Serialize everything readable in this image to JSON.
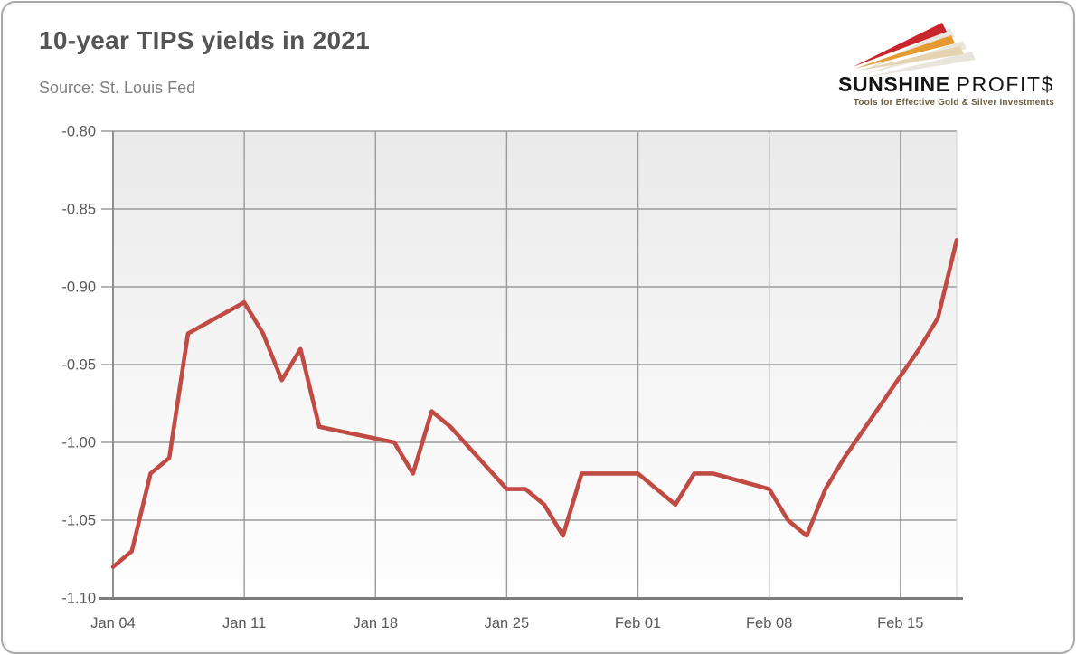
{
  "header": {
    "title": "10-year TIPS yields in 2021",
    "source": "Source: St. Louis Fed"
  },
  "logo": {
    "brand_primary": "SUNSHINE",
    "brand_secondary": "PROFIT$",
    "tagline": "Tools for Effective Gold & Silver Investments",
    "colors": {
      "ray_red": "#c9252c",
      "ray_gold": "#e59a2f",
      "ray_beige": "#e4d4b0",
      "ray_shadow": "#d9d0bf"
    }
  },
  "chart_data": {
    "type": "line",
    "title": "10-year TIPS yields in 2021",
    "xlabel": "",
    "ylabel": "",
    "ylim": [
      -1.1,
      -0.8
    ],
    "yticks": [
      -0.8,
      -0.85,
      -0.9,
      -0.95,
      -1.0,
      -1.05,
      -1.1
    ],
    "ytick_labels": [
      "-0.80",
      "-0.85",
      "-0.90",
      "-0.95",
      "-1.00",
      "-1.05",
      "-1.10"
    ],
    "xticks": [
      {
        "label": "Jan 04",
        "day": 0
      },
      {
        "label": "Jan 11",
        "day": 7
      },
      {
        "label": "Jan 18",
        "day": 14
      },
      {
        "label": "Jan 25",
        "day": 21
      },
      {
        "label": "Feb 01",
        "day": 28
      },
      {
        "label": "Feb 08",
        "day": 35
      },
      {
        "label": "Feb 15",
        "day": 42
      }
    ],
    "x_total_days": 45,
    "grid": true,
    "legend": "none",
    "grid_color": "#9b9b9b",
    "axis_color": "#7c7c7c",
    "line_color": "#c04b44",
    "plot_bg_top": "#eaeaea",
    "plot_bg_bottom": "#fefefe",
    "series": [
      {
        "name": "10-year TIPS yield (%)",
        "points": [
          {
            "date": "Jan 04",
            "day": 0,
            "value": -1.08
          },
          {
            "date": "Jan 05",
            "day": 1,
            "value": -1.07
          },
          {
            "date": "Jan 06",
            "day": 2,
            "value": -1.02
          },
          {
            "date": "Jan 07",
            "day": 3,
            "value": -1.01
          },
          {
            "date": "Jan 08",
            "day": 4,
            "value": -0.93
          },
          {
            "date": "Jan 11",
            "day": 7,
            "value": -0.91
          },
          {
            "date": "Jan 12",
            "day": 8,
            "value": -0.93
          },
          {
            "date": "Jan 13",
            "day": 9,
            "value": -0.96
          },
          {
            "date": "Jan 14",
            "day": 10,
            "value": -0.94
          },
          {
            "date": "Jan 15",
            "day": 11,
            "value": -0.99
          },
          {
            "date": "Jan 19",
            "day": 15,
            "value": -1.0
          },
          {
            "date": "Jan 20",
            "day": 16,
            "value": -1.02
          },
          {
            "date": "Jan 21",
            "day": 17,
            "value": -0.98
          },
          {
            "date": "Jan 22",
            "day": 18,
            "value": -0.99
          },
          {
            "date": "Jan 25",
            "day": 21,
            "value": -1.03
          },
          {
            "date": "Jan 26",
            "day": 22,
            "value": -1.03
          },
          {
            "date": "Jan 27",
            "day": 23,
            "value": -1.04
          },
          {
            "date": "Jan 28",
            "day": 24,
            "value": -1.06
          },
          {
            "date": "Jan 29",
            "day": 25,
            "value": -1.02
          },
          {
            "date": "Feb 01",
            "day": 28,
            "value": -1.02
          },
          {
            "date": "Feb 02",
            "day": 29,
            "value": -1.03
          },
          {
            "date": "Feb 03",
            "day": 30,
            "value": -1.04
          },
          {
            "date": "Feb 04",
            "day": 31,
            "value": -1.02
          },
          {
            "date": "Feb 05",
            "day": 32,
            "value": -1.02
          },
          {
            "date": "Feb 08",
            "day": 35,
            "value": -1.03
          },
          {
            "date": "Feb 09",
            "day": 36,
            "value": -1.05
          },
          {
            "date": "Feb 10",
            "day": 37,
            "value": -1.06
          },
          {
            "date": "Feb 11",
            "day": 38,
            "value": -1.03
          },
          {
            "date": "Feb 12",
            "day": 39,
            "value": -1.01
          },
          {
            "date": "Feb 16",
            "day": 43,
            "value": -0.94
          },
          {
            "date": "Feb 17",
            "day": 44,
            "value": -0.92
          },
          {
            "date": "Feb 18",
            "day": 45,
            "value": -0.87
          }
        ]
      }
    ]
  }
}
